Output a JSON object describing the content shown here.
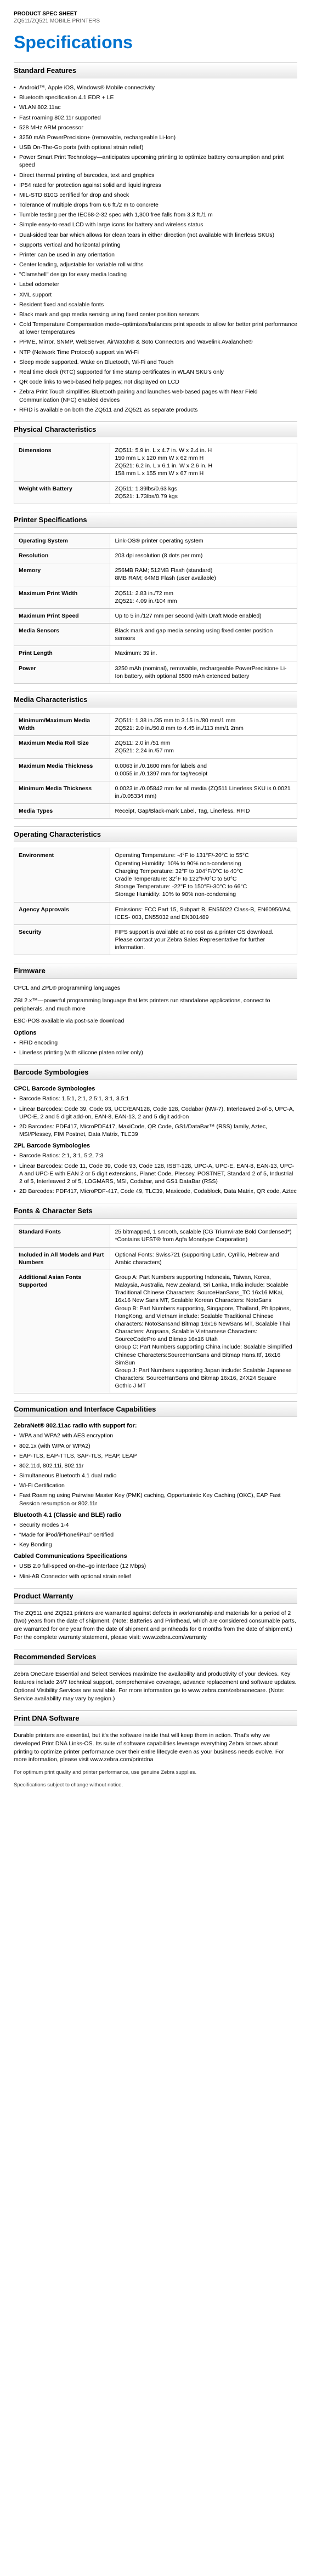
{
  "header": {
    "spec_sheet": "PRODUCT SPEC SHEET",
    "product": "ZQ511/ZQ521 MOBILE PRINTERS",
    "title": "Specifications"
  },
  "sections": {
    "standard_features": {
      "title": "Standard Features",
      "items": [
        "Android™, Apple iOS, Windows® Mobile connectivity",
        "Bluetooth specification 4.1 EDR + LE",
        "WLAN 802.11ac",
        "Fast roaming 802.11r supported",
        "528 MHz ARM processor",
        "3250 mAh PowerPrecision+ (removable, rechargeable Li-Ion)",
        "USB On-The-Go ports (with optional strain relief)",
        "Power Smart Print Technology—anticipates upcoming printing to optimize battery consumption and print speed",
        "Direct thermal printing of barcodes, text and graphics",
        "IP54 rated for protection against solid and liquid ingress",
        "MIL-STD 810G certified for drop and shock",
        "Tolerance of multiple drops from 6.6 ft./2 m to concrete",
        "Tumble testing per the IEC68-2-32 spec with 1,300 free falls from 3.3 ft./1 m",
        "Simple easy-to-read LCD with large icons for battery and wireless status",
        "Dual-sided tear bar which allows for clean tears in either direction (not available with linerless SKUs)",
        "Supports vertical and horizontal printing",
        "Printer can be used in any orientation",
        "Center loading, adjustable for variable roll widths",
        "\"Clamshell\" design for easy media loading",
        "Label odometer",
        "XML support",
        "Resident fixed and scalable fonts",
        "Black mark and gap media sensing using fixed center position sensors",
        "Cold Temperature Compensation mode–optimizes/balances print speeds to allow for better print performance at lower temperatures",
        "PPME, Mirror, SNMP, WebServer, AirWatch® & Soto Connectors and Wavelink Avalanche®",
        "NTP (Network Time Protocol) support via Wi-Fi",
        "Sleep mode supported. Wake on Bluetooth, Wi-Fi and Touch",
        "Real time clock (RTC) supported for time stamp certificates in WLAN SKU's only",
        "QR code links to web-based help pages; not displayed on LCD",
        "Zebra Print Touch simplifies Bluetooth pairing and launches web-based pages with Near Field Communication (NFC) enabled devices",
        "RFID is available on both the ZQ511 and ZQ521 as separate products"
      ]
    },
    "physical": {
      "title": "Physical Characteristics",
      "rows": [
        [
          "Dimensions",
          "ZQ511: 5.9 in. L x 4.7 in. W x 2.4 in. H\n150 mm L x 120 mm W x 62 mm H\nZQ521: 6.2 in. L x 6.1 in. W x 2.6 in. H\n158 mm L x 155 mm W x 67 mm H"
        ],
        [
          "Weight with Battery",
          "ZQ511: 1.39lbs/0.63 kgs\nZQ521: 1.73lbs/0.79 kgs"
        ]
      ]
    },
    "printer_specs": {
      "title": "Printer Specifications",
      "rows": [
        [
          "Operating System",
          "Link-OS® printer operating system"
        ],
        [
          "Resolution",
          "203 dpi resolution (8 dots per mm)"
        ],
        [
          "Memory",
          "256MB RAM; 512MB Flash (standard)\n8MB RAM; 64MB Flash (user available)"
        ],
        [
          "Maximum Print Width",
          "ZQ511: 2.83 in./72 mm\nZQ521: 4.09 in./104 mm"
        ],
        [
          "Maximum Print Speed",
          "Up to 5 in./127 mm per second (with Draft Mode enabled)"
        ],
        [
          "Media Sensors",
          "Black mark and gap media sensing using fixed center position sensors"
        ],
        [
          "Print Length",
          "Maximum: 39 in."
        ],
        [
          "Power",
          "3250 mAh (nominal), removable, rechargeable PowerPrecision+ Li-Ion battery, with optional 6500 mAh extended battery"
        ]
      ]
    },
    "media": {
      "title": "Media Characteristics",
      "rows": [
        [
          "Minimum/Maximum Media Width",
          "ZQ511: 1.38 in./35 mm to 3.15 in./80 mm/1 mm\nZQ521: 2.0 in./50.8 mm to 4.45 in./113 mm/1 2mm"
        ],
        [
          "Maximum Media Roll Size",
          "ZQ511: 2.0 in./51 mm\nZQ521: 2.24 in./57 mm"
        ],
        [
          "Maximum Media Thickness",
          "0.0063 in./0.1600 mm for labels and\n0.0055 in./0.1397 mm for tag/receipt"
        ],
        [
          "Minimum Media Thickness",
          "0.0023 in./0.05842 mm for all media (ZQ511 Linerless SKU is 0.0021 in./0.05334 mm)"
        ],
        [
          "Media Types",
          "Receipt, Gap/Black-mark Label, Tag, Linerless, RFID"
        ]
      ]
    },
    "operating": {
      "title": "Operating Characteristics",
      "rows": [
        [
          "Environment",
          "Operating Temperature: -4°F to 131°F/-20°C to 55°C\nOperating Humidity: 10% to 90% non-condensing\nCharging Temperature: 32°F to 104°F/0°C to 40°C\nCradle Temperature: 32°F to 122°F/0°C to 50°C\nStorage Temperature: -22°F to 150°F/-30°C to 66°C\nStorage Humidity: 10% to 90% non-condensing"
        ],
        [
          "Agency Approvals",
          "Emissions: FCC Part 15, Subpart B, EN55022 Class-B, EN60950/A4, ICES- 003, EN55032 and EN301489"
        ],
        [
          "Security",
          "FIPS support is available at no cost as a printer OS download. Please contact your Zebra Sales Representative for further information."
        ]
      ]
    },
    "firmware": {
      "title": "Firmware",
      "para": "CPCL and ZPL® programming languages",
      "para2": "ZBI 2.x™—powerful programming language that lets printers run standalone applications, connect to peripherals, and much more",
      "para3": "ESC-POS available via post-sale download",
      "options_title": "Options",
      "options": [
        "RFID encoding",
        "Linerless printing (with silicone platen roller only)"
      ]
    },
    "barcode": {
      "title": "Barcode Symbologies",
      "cpcl_title": "CPCL Barcode Symbologies",
      "cpcl": [
        "Barcode Ratios: 1.5:1, 2:1, 2.5:1, 3:1, 3.5:1",
        "Linear Barcodes: Code 39, Code 93, UCC/EAN128, Code 128, Codabar (NW-7), Interleaved 2-of-5, UPC-A, UPC-E, 2 and 5 digit add-on, EAN-8, EAN-13, 2 and 5 digit add-on",
        "2D Barcodes: PDF417, MicroPDF417, MaxiCode, QR Code, GS1/DataBar™ (RSS) family, Aztec, MSI/Plessey, FIM Postnet, Data Matrix, TLC39"
      ],
      "zpl_title": "ZPL Barcode Symbologies",
      "zpl": [
        "Barcode Ratios: 2:1, 3:1, 5:2, 7:3",
        "Linear Barcodes: Code 11, Code 39, Code 93, Code 128, ISBT-128, UPC-A, UPC-E, EAN-8, EAN-13, UPC-A and UPC-E with EAN 2 or 5 digit extensions, Planet Code, Plessey, POSTNET, Standard 2 of 5, Industrial 2 of 5, Interleaved 2 of 5, LOGMARS, MSI, Codabar, and GS1 DataBar (RSS)",
        "2D Barcodes: PDF417, MicroPDF-417, Code 49, TLC39, Maxicode, Codablock, Data Matrix, QR code, Aztec"
      ]
    },
    "fonts": {
      "title": "Fonts & Character Sets",
      "rows": [
        [
          "Standard Fonts",
          "25 bitmapped, 1 smooth, scalable (CG Triumvirate Bold Condensed*) *Contains UFST® from Agfa Monotype Corporation)"
        ],
        [
          "Included in All Models and Part Numbers",
          "Optional Fonts: Swiss721 (supporting Latin, Cyrillic, Hebrew and Arabic characters)"
        ],
        [
          "Additional Asian Fonts Supported",
          "Group A: Part Numbers supporting Indonesia, Taiwan, Korea, Malaysia, Australia, New Zealand, Sri Lanka, India include: Scalable Traditional Chinese Characters: SourceHanSans_TC 16x16 MKai, 16x16 New Sans MT, Scalable Korean Characters: NotoSans\nGroup B: Part Numbers supporting, Singapore, Thailand, Philippines, HongKong, and Vietnam include: Scalable Traditional Chinese characters: NotoSansand Bitmap 16x16 NewSans MT, Scalable Thai Characters: Angsana, Scalable Vietnamese Characters: SourceCodePro and Bitmap 16x16 Utah\nGroup C: Part Numbers supporting China include: Scalable Simplified Chinese Characters:SourceHanSans and Bitmap Hans.ttf, 16x16 SimSun\nGroup J: Part Numbers supporting Japan include: Scalable Japanese Characters: SourceHanSans and Bitmap 16x16, 24X24 Square Gothic J MT"
        ]
      ]
    },
    "comm": {
      "title": "Communication and Interface Capabilities",
      "zebranet_title": "ZebraNet® 802.11ac radio with support for:",
      "zebranet": [
        "WPA and WPA2 with AES encryption",
        "802.1x (with WPA or WPA2)",
        "EAP-TLS, EAP-TTLS, SAP-TLS, PEAP, LEAP",
        "802.11d, 802.11i, 802.11r",
        "Simultaneous Bluetooth 4.1 dual radio",
        "Wi-Fi Certification",
        "Fast Roaming using Pairwise Master Key (PMK) caching, Opportunistic Key Caching (OKC), EAP Fast Session resumption or 802.11r"
      ],
      "bt_title": "Bluetooth 4.1 (Classic and BLE) radio",
      "bt": [
        "Security modes 1-4",
        "\"Made for iPod/iPhone/iPad\" certified",
        "Key Bonding"
      ],
      "cabled_title": "Cabled Communications Specifications",
      "cabled": [
        "USB 2.0 full-speed on-the–go interface (12 Mbps)",
        "Mini-AB Connector with optional strain relief"
      ]
    },
    "warranty": {
      "title": "Product Warranty",
      "para": "The ZQ511 and ZQ521 printers are warranted against defects in workmanship and materials for a period of 2 (two) years from the date of shipment. (Note: Batteries and Printhead, which are considered consumable parts, are warranted for one year from the date of shipment and printheads for 6 months from the date of shipment.) For the complete warranty statement, please visit: www.zebra.com/warranty"
    },
    "services": {
      "title": "Recommended Services",
      "para": "Zebra OneCare Essential and Select Services maximize the availability and productivity of your devices. Key features include 24/7 technical support, comprehensive coverage, advance replacement and software updates. Optional Visibility Services are available. For more information go to www.zebra.com/zebraonecare. (Note: Service availability may vary by region.)"
    },
    "dna": {
      "title": "Print DNA Software",
      "para": "Durable printers are essential, but it's the software inside that will keep them in action. That's why we developed Print DNA Links-OS. Its suite of software capabilities leverage everything Zebra knows about printing to optimize printer performance over their entire lifecycle even as your business needs evolve. For more information, please visit www.zebra.com/printdna"
    }
  },
  "footnotes": {
    "f1": "For optimum print quality and printer performance, use genuine Zebra supplies.",
    "f2": "Specifications subject to change without notice."
  }
}
